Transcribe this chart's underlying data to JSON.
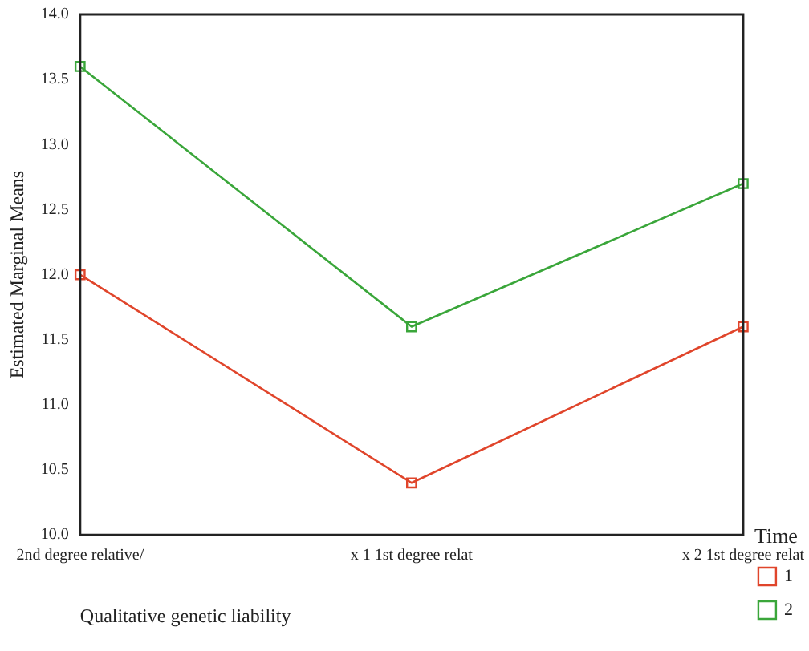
{
  "chart_data": {
    "type": "line",
    "xlabel": "Qualitative genetic liability",
    "ylabel": "Estimated Marginal Means",
    "legend_title": "Time",
    "categories": [
      "2nd degree relative/",
      "x 1 1st degree relat",
      "x 2 1st degree relat"
    ],
    "series": [
      {
        "name": "1",
        "color": "#e0452b",
        "values": [
          12.0,
          10.4,
          11.6
        ]
      },
      {
        "name": "2",
        "color": "#3aa63a",
        "values": [
          13.6,
          11.6,
          12.7
        ]
      }
    ],
    "ylim": [
      10,
      14
    ],
    "yticks": [
      {
        "value": 10,
        "label": "10.0"
      },
      {
        "value": 10.5,
        "label": "10.5"
      },
      {
        "value": 11,
        "label": "11.0"
      },
      {
        "value": 11.5,
        "label": "11.5"
      },
      {
        "value": 12,
        "label": "12.0"
      },
      {
        "value": 12.5,
        "label": "12.5"
      },
      {
        "value": 13,
        "label": "13.0"
      },
      {
        "value": 13.5,
        "label": "13.5"
      },
      {
        "value": 14,
        "label": "14.0"
      }
    ],
    "grid": false,
    "legend": "right",
    "marker": "square",
    "line_style": "solid"
  }
}
